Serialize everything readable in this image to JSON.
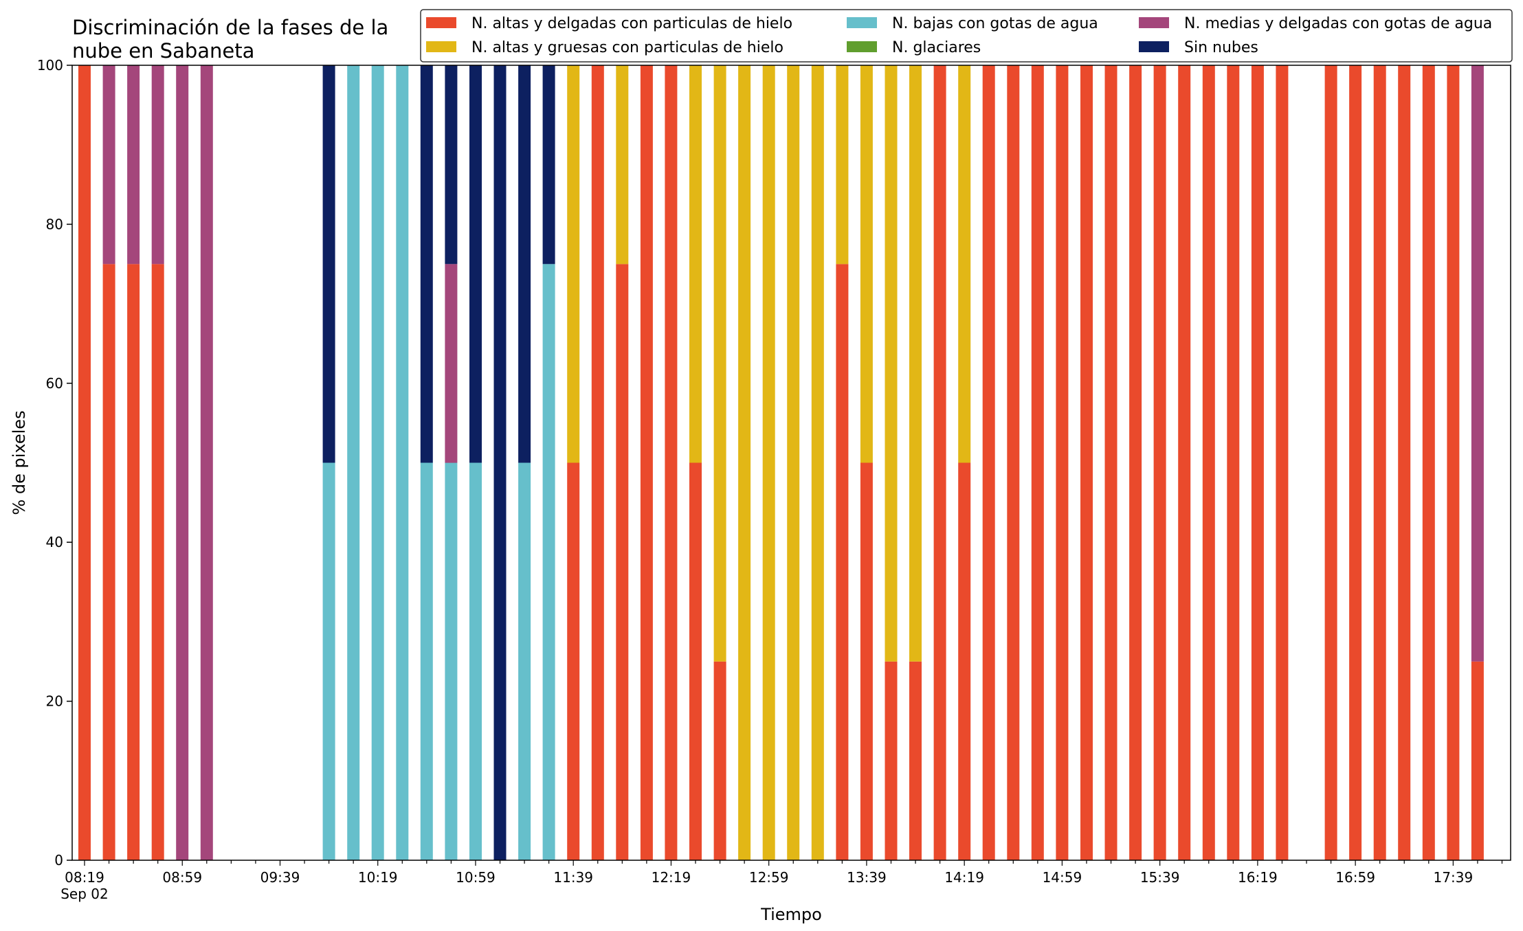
{
  "chart_data": {
    "type": "bar",
    "stacked": true,
    "title": [
      "Discriminación de la fases de la",
      "nube en Sabaneta"
    ],
    "xlabel": "Tiempo",
    "ylabel": "% de pixeles",
    "ylim": [
      0,
      100
    ],
    "yticks": [
      0,
      20,
      40,
      60,
      80,
      100
    ],
    "xtick_labels": [
      "08:19",
      "08:59",
      "09:39",
      "10:19",
      "10:59",
      "11:39",
      "12:19",
      "12:59",
      "13:39",
      "14:19",
      "14:59",
      "15:39",
      "16:19",
      "16:59",
      "17:39"
    ],
    "xtick_sublabel": "Sep 02",
    "interval_minutes": 10,
    "start_time": "08:19",
    "legend_position": "top-right",
    "series": [
      {
        "name": "N. altas y delgadas con particulas de hielo",
        "color": "#ea4a2c"
      },
      {
        "name": "N. altas y gruesas con particulas de hielo",
        "color": "#e2b716"
      },
      {
        "name": "N. bajas con gotas de agua",
        "color": "#66bfcb"
      },
      {
        "name": "N. glaciares",
        "color": "#609e2e"
      },
      {
        "name": "N. medias y delgadas con gotas de agua",
        "color": "#a4467b"
      },
      {
        "name": "Sin nubes",
        "color": "#0d2060"
      }
    ],
    "bars": [
      {
        "t": "08:19",
        "values": [
          100,
          0,
          0,
          0,
          0,
          0
        ]
      },
      {
        "t": "08:29",
        "values": [
          75,
          0,
          0,
          0,
          25,
          0
        ]
      },
      {
        "t": "08:39",
        "values": [
          75,
          0,
          0,
          0,
          25,
          0
        ]
      },
      {
        "t": "08:49",
        "values": [
          75,
          0,
          0,
          0,
          25,
          0
        ]
      },
      {
        "t": "08:59",
        "values": [
          0,
          0,
          0,
          0,
          100,
          0
        ]
      },
      {
        "t": "09:09",
        "values": [
          0,
          0,
          0,
          0,
          100,
          0
        ]
      },
      {
        "t": "09:59",
        "values": [
          0,
          0,
          50,
          0,
          0,
          50
        ]
      },
      {
        "t": "10:09",
        "values": [
          0,
          0,
          100,
          0,
          0,
          0
        ]
      },
      {
        "t": "10:19",
        "values": [
          0,
          0,
          100,
          0,
          0,
          0
        ]
      },
      {
        "t": "10:29",
        "values": [
          0,
          0,
          100,
          0,
          0,
          0
        ]
      },
      {
        "t": "10:39",
        "values": [
          0,
          0,
          50,
          0,
          0,
          50
        ]
      },
      {
        "t": "10:49",
        "values": [
          0,
          0,
          50,
          0,
          25,
          25
        ]
      },
      {
        "t": "10:59",
        "values": [
          0,
          0,
          50,
          0,
          0,
          50
        ]
      },
      {
        "t": "11:09",
        "values": [
          0,
          0,
          0,
          0,
          0,
          100
        ]
      },
      {
        "t": "11:19",
        "values": [
          0,
          0,
          50,
          0,
          0,
          50
        ]
      },
      {
        "t": "11:29",
        "values": [
          0,
          0,
          75,
          0,
          0,
          25
        ]
      },
      {
        "t": "11:39",
        "values": [
          50,
          50,
          0,
          0,
          0,
          0
        ]
      },
      {
        "t": "11:49",
        "values": [
          100,
          0,
          0,
          0,
          0,
          0
        ]
      },
      {
        "t": "11:59",
        "values": [
          75,
          25,
          0,
          0,
          0,
          0
        ]
      },
      {
        "t": "12:09",
        "values": [
          100,
          0,
          0,
          0,
          0,
          0
        ]
      },
      {
        "t": "12:19",
        "values": [
          100,
          0,
          0,
          0,
          0,
          0
        ]
      },
      {
        "t": "12:29",
        "values": [
          50,
          50,
          0,
          0,
          0,
          0
        ]
      },
      {
        "t": "12:39",
        "values": [
          25,
          75,
          0,
          0,
          0,
          0
        ]
      },
      {
        "t": "12:49",
        "values": [
          0,
          100,
          0,
          0,
          0,
          0
        ]
      },
      {
        "t": "12:59",
        "values": [
          0,
          100,
          0,
          0,
          0,
          0
        ]
      },
      {
        "t": "13:09",
        "values": [
          0,
          100,
          0,
          0,
          0,
          0
        ]
      },
      {
        "t": "13:19",
        "values": [
          0,
          100,
          0,
          0,
          0,
          0
        ]
      },
      {
        "t": "13:29",
        "values": [
          75,
          25,
          0,
          0,
          0,
          0
        ]
      },
      {
        "t": "13:39",
        "values": [
          50,
          50,
          0,
          0,
          0,
          0
        ]
      },
      {
        "t": "13:49",
        "values": [
          25,
          75,
          0,
          0,
          0,
          0
        ]
      },
      {
        "t": "13:59",
        "values": [
          25,
          75,
          0,
          0,
          0,
          0
        ]
      },
      {
        "t": "14:09",
        "values": [
          100,
          0,
          0,
          0,
          0,
          0
        ]
      },
      {
        "t": "14:19",
        "values": [
          50,
          50,
          0,
          0,
          0,
          0
        ]
      },
      {
        "t": "14:29",
        "values": [
          100,
          0,
          0,
          0,
          0,
          0
        ]
      },
      {
        "t": "14:39",
        "values": [
          100,
          0,
          0,
          0,
          0,
          0
        ]
      },
      {
        "t": "14:49",
        "values": [
          100,
          0,
          0,
          0,
          0,
          0
        ]
      },
      {
        "t": "14:59",
        "values": [
          100,
          0,
          0,
          0,
          0,
          0
        ]
      },
      {
        "t": "15:09",
        "values": [
          100,
          0,
          0,
          0,
          0,
          0
        ]
      },
      {
        "t": "15:19",
        "values": [
          100,
          0,
          0,
          0,
          0,
          0
        ]
      },
      {
        "t": "15:29",
        "values": [
          100,
          0,
          0,
          0,
          0,
          0
        ]
      },
      {
        "t": "15:39",
        "values": [
          100,
          0,
          0,
          0,
          0,
          0
        ]
      },
      {
        "t": "15:49",
        "values": [
          100,
          0,
          0,
          0,
          0,
          0
        ]
      },
      {
        "t": "15:59",
        "values": [
          100,
          0,
          0,
          0,
          0,
          0
        ]
      },
      {
        "t": "16:09",
        "values": [
          100,
          0,
          0,
          0,
          0,
          0
        ]
      },
      {
        "t": "16:19",
        "values": [
          100,
          0,
          0,
          0,
          0,
          0
        ]
      },
      {
        "t": "16:29",
        "values": [
          100,
          0,
          0,
          0,
          0,
          0
        ]
      },
      {
        "t": "16:49",
        "values": [
          100,
          0,
          0,
          0,
          0,
          0
        ]
      },
      {
        "t": "16:59",
        "values": [
          100,
          0,
          0,
          0,
          0,
          0
        ]
      },
      {
        "t": "17:09",
        "values": [
          100,
          0,
          0,
          0,
          0,
          0
        ]
      },
      {
        "t": "17:19",
        "values": [
          100,
          0,
          0,
          0,
          0,
          0
        ]
      },
      {
        "t": "17:29",
        "values": [
          100,
          0,
          0,
          0,
          0,
          0
        ]
      },
      {
        "t": "17:39",
        "values": [
          100,
          0,
          0,
          0,
          0,
          0
        ]
      },
      {
        "t": "17:49",
        "values": [
          25,
          0,
          0,
          0,
          75,
          0
        ]
      }
    ]
  }
}
